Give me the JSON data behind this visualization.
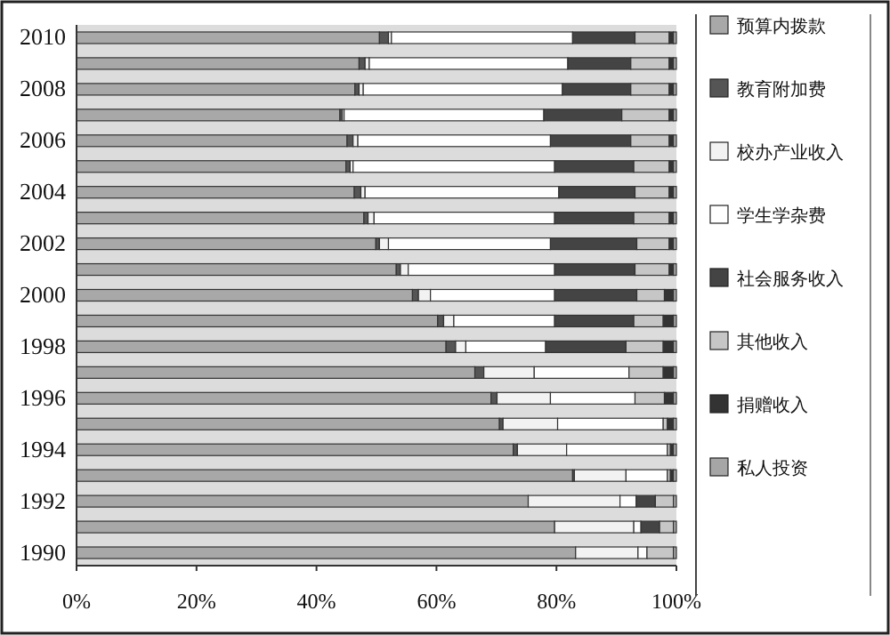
{
  "chart_data": {
    "type": "bar",
    "orientation": "horizontal",
    "stacked": true,
    "categories": [
      "2010",
      null,
      "2008",
      null,
      "2006",
      null,
      "2004",
      null,
      "2002",
      null,
      "2000",
      null,
      "1998",
      null,
      "1996",
      null,
      "1994",
      null,
      "1992",
      null,
      "1990"
    ],
    "series": [
      {
        "name": "预算内拨款",
        "color": "#a8a8a8",
        "values": [
          50.5,
          47.1,
          46.4,
          43.9,
          45.1,
          44.9,
          46.3,
          47.9,
          49.9,
          53.3,
          56.0,
          60.2,
          61.6,
          66.4,
          69.1,
          70.5,
          72.8,
          82.7,
          75.3,
          79.7,
          83.2
        ]
      },
      {
        "name": "教育附加费",
        "color": "#555555",
        "values": [
          1.5,
          1.0,
          0.7,
          0.4,
          1.0,
          0.7,
          1.1,
          0.7,
          0.6,
          0.7,
          1.0,
          1.0,
          1.6,
          1.5,
          1.0,
          0.6,
          0.7,
          0.3,
          0,
          0,
          0
        ]
      },
      {
        "name": "校办产业收入",
        "color": "#f2f2f2",
        "values": [
          0.5,
          0.7,
          0.7,
          0.3,
          0.8,
          0.5,
          0.7,
          1.0,
          1.5,
          1.3,
          2.0,
          1.7,
          1.7,
          8.4,
          8.9,
          9.1,
          8.2,
          8.6,
          15.3,
          13.2,
          10.4
        ]
      },
      {
        "name": "学生学杂费",
        "color": "#ffffff",
        "values": [
          30.2,
          33.1,
          33.2,
          33.3,
          32.1,
          33.6,
          32.3,
          30.1,
          27.0,
          24.4,
          20.7,
          16.8,
          13.3,
          15.8,
          14.1,
          17.6,
          16.8,
          6.9,
          2.7,
          1.2,
          1.5
        ]
      },
      {
        "name": "社会服务收入",
        "color": "#444444",
        "values": [
          10.4,
          10.5,
          11.4,
          13.0,
          13.4,
          13.2,
          12.7,
          13.2,
          14.4,
          13.4,
          13.7,
          13.2,
          13.4,
          0,
          0,
          0,
          0,
          0,
          3.2,
          3.1,
          0
        ]
      },
      {
        "name": "其他收入",
        "color": "#c6c6c6",
        "values": [
          5.7,
          6.4,
          6.4,
          7.9,
          6.4,
          5.9,
          5.7,
          5.9,
          5.4,
          5.7,
          4.6,
          4.9,
          6.2,
          5.7,
          4.9,
          0.7,
          0.5,
          0.5,
          3.0,
          2.3,
          4.4
        ]
      },
      {
        "name": "捐赠收入",
        "color": "#333333",
        "values": [
          0.7,
          0.7,
          0.7,
          0.7,
          0.7,
          0.7,
          0.7,
          0.7,
          0.7,
          0.7,
          1.5,
          1.7,
          1.7,
          1.7,
          1.5,
          1.0,
          0.5,
          0.5,
          0,
          0,
          0
        ]
      },
      {
        "name": "私人投资",
        "color": "#a6a6a6",
        "values": [
          0.5,
          0.5,
          0.5,
          0.5,
          0.5,
          0.5,
          0.5,
          0.5,
          0.5,
          0.5,
          0.5,
          0.5,
          0.5,
          0.5,
          0.5,
          0.5,
          0.5,
          0.5,
          0.5,
          0.5,
          0.5
        ]
      }
    ],
    "xlim": [
      0,
      100
    ],
    "xticks": [
      {
        "value": 0,
        "label": "0%"
      },
      {
        "value": 20,
        "label": "20%"
      },
      {
        "value": 40,
        "label": "40%"
      },
      {
        "value": 60,
        "label": "60%"
      },
      {
        "value": 80,
        "label": "80%"
      },
      {
        "value": 100,
        "label": "100%"
      }
    ],
    "legend": "right"
  }
}
